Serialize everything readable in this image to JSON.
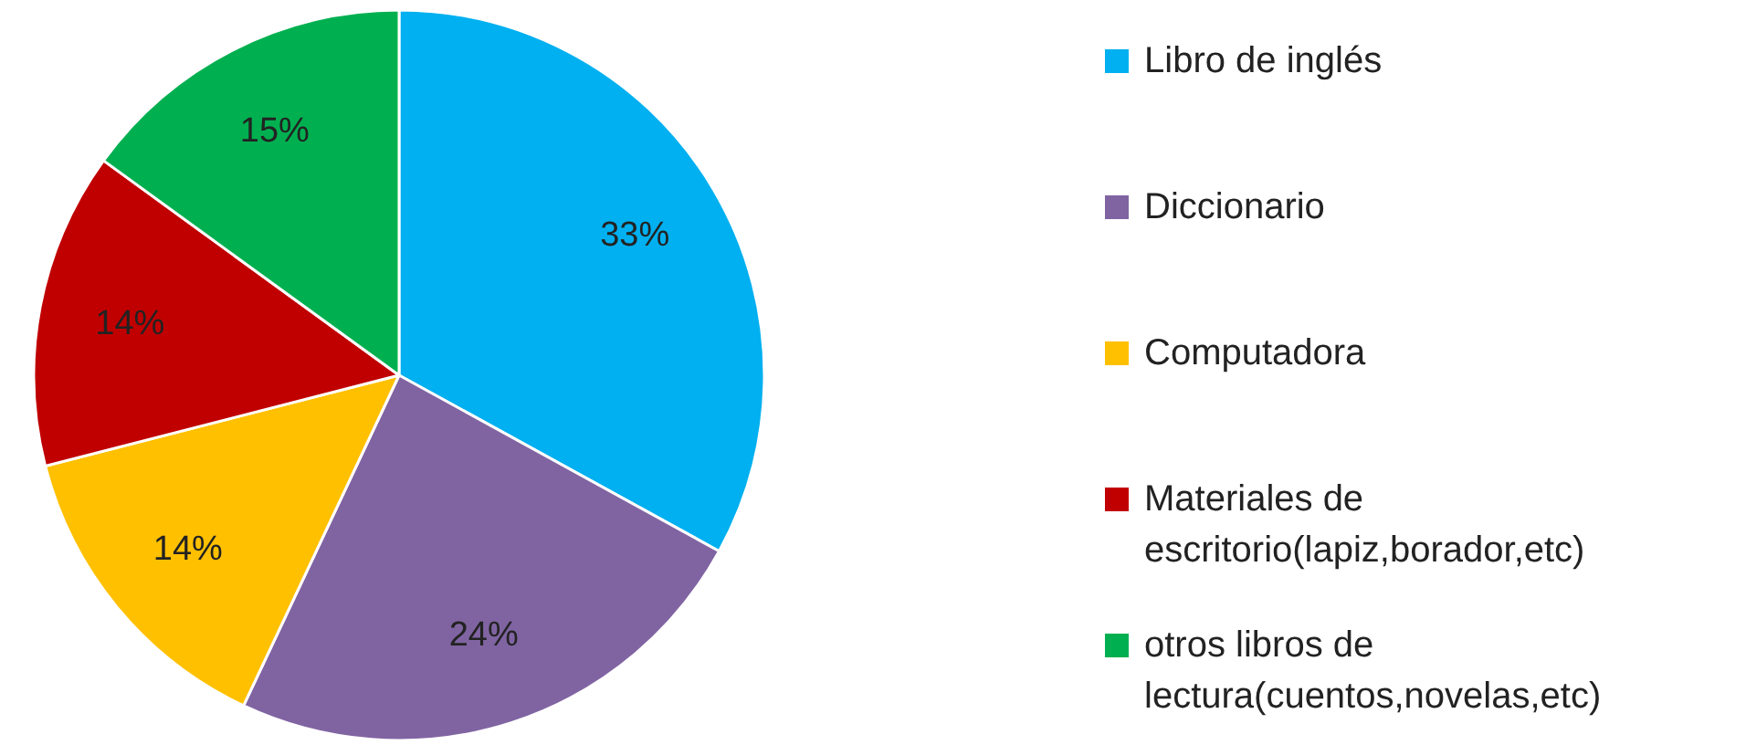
{
  "chart_data": {
    "type": "pie",
    "categories": [
      "Libro de inglés",
      "Diccionario",
      "Computadora",
      "Materiales de escritorio(lapiz,borador,etc)",
      "otros libros de lectura(cuentos,novelas,etc)"
    ],
    "values": [
      33,
      24,
      14,
      14,
      15
    ],
    "value_labels": [
      "33%",
      "24%",
      "14%",
      "14%",
      "15%"
    ],
    "colors": [
      "#00b0f0",
      "#8064a2",
      "#ffc000",
      "#c00000",
      "#00b050"
    ],
    "legend": "right"
  }
}
